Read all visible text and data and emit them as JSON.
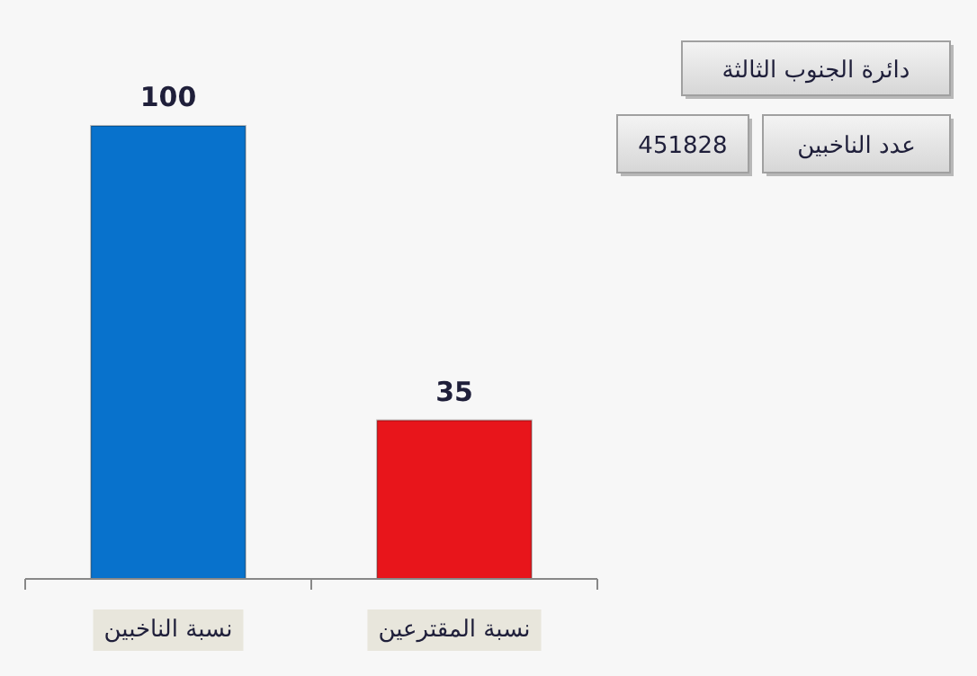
{
  "chart_data": {
    "type": "bar",
    "title": "دائرة  الجنوب الثالثة",
    "categories": [
      "نسبة الناخبين",
      "نسبة المقترعين"
    ],
    "values": [
      100,
      35
    ],
    "colors": [
      "#0872cc",
      "#e8151b"
    ],
    "data_labels": true,
    "annotations": [
      "عدد الناخبين",
      "451828"
    ]
  }
}
